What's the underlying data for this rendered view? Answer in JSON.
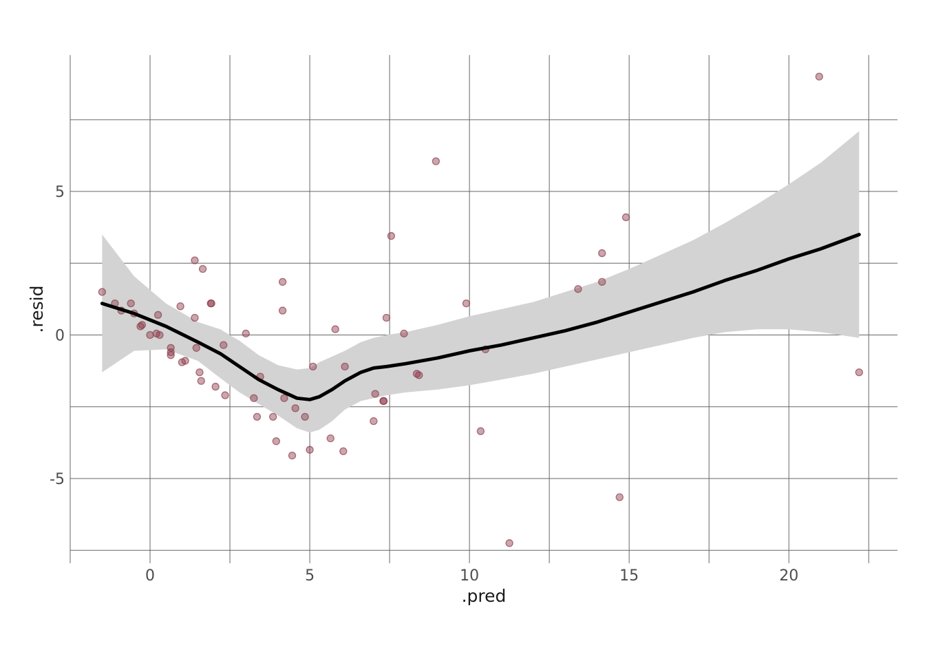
{
  "chart_data": {
    "type": "scatter",
    "title": "",
    "xlabel": ".pred",
    "ylabel": ".resid",
    "xlim": [
      -2.5,
      23.4
    ],
    "ylim": [
      -7.95,
      9.75
    ],
    "x_ticks": [
      0,
      5,
      10,
      15,
      20
    ],
    "x_tick_labels": [
      "0",
      "5",
      "10",
      "15",
      "20"
    ],
    "y_ticks": [
      -5,
      0,
      5
    ],
    "y_tick_labels": [
      "-5",
      "0",
      "5"
    ],
    "x_minor_grid": [
      -2.5,
      2.5,
      7.5,
      12.5,
      17.5,
      22.5
    ],
    "y_minor_grid": [
      -7.5,
      -2.5,
      2.5,
      7.5
    ],
    "grid": true,
    "legend": "none",
    "colors": {
      "points": "#8b3a4a",
      "smooth_line": "#000000",
      "ribbon": "#d3d3d3",
      "grid": "#666666"
    },
    "points": [
      [
        -1.5,
        1.5
      ],
      [
        -1.1,
        1.1
      ],
      [
        -0.9,
        0.85
      ],
      [
        -0.6,
        1.1
      ],
      [
        -0.5,
        0.75
      ],
      [
        -0.3,
        0.3
      ],
      [
        -0.25,
        0.35
      ],
      [
        0.0,
        0.0
      ],
      [
        0.2,
        0.05
      ],
      [
        0.25,
        0.7
      ],
      [
        0.3,
        0.0
      ],
      [
        0.65,
        -0.45
      ],
      [
        0.65,
        -0.6
      ],
      [
        0.65,
        -0.7
      ],
      [
        0.95,
        1.0
      ],
      [
        1.0,
        -0.95
      ],
      [
        1.1,
        -0.9
      ],
      [
        1.4,
        2.6
      ],
      [
        1.4,
        0.6
      ],
      [
        1.45,
        -0.45
      ],
      [
        1.55,
        -1.3
      ],
      [
        1.6,
        -1.6
      ],
      [
        1.65,
        2.3
      ],
      [
        1.9,
        1.1
      ],
      [
        1.92,
        1.1
      ],
      [
        2.05,
        -1.8
      ],
      [
        2.3,
        -0.35
      ],
      [
        2.35,
        -2.1
      ],
      [
        3.0,
        0.05
      ],
      [
        3.25,
        -2.2
      ],
      [
        3.35,
        -2.85
      ],
      [
        3.45,
        -1.45
      ],
      [
        3.85,
        -2.85
      ],
      [
        3.95,
        -3.7
      ],
      [
        4.15,
        1.85
      ],
      [
        4.15,
        0.85
      ],
      [
        4.2,
        -2.2
      ],
      [
        4.45,
        -4.2
      ],
      [
        4.55,
        -2.55
      ],
      [
        4.85,
        -2.85
      ],
      [
        5.0,
        -4.0
      ],
      [
        5.1,
        -1.1
      ],
      [
        5.65,
        -3.6
      ],
      [
        5.8,
        0.2
      ],
      [
        6.05,
        -4.05
      ],
      [
        6.1,
        -1.1
      ],
      [
        7.0,
        -3.0
      ],
      [
        7.05,
        -2.05
      ],
      [
        7.3,
        -2.3
      ],
      [
        7.32,
        -2.3
      ],
      [
        7.4,
        0.6
      ],
      [
        7.55,
        3.45
      ],
      [
        7.95,
        0.05
      ],
      [
        8.35,
        -1.35
      ],
      [
        8.42,
        -1.4
      ],
      [
        8.95,
        6.05
      ],
      [
        9.9,
        1.1
      ],
      [
        10.35,
        -3.35
      ],
      [
        10.5,
        -0.5
      ],
      [
        11.25,
        -7.25
      ],
      [
        13.4,
        1.6
      ],
      [
        14.15,
        2.85
      ],
      [
        14.15,
        1.85
      ],
      [
        14.7,
        -5.65
      ],
      [
        14.9,
        4.1
      ],
      [
        20.95,
        9.0
      ],
      [
        22.2,
        -1.3
      ]
    ],
    "smooth": {
      "x": [
        -1.5,
        -0.5,
        0.5,
        1.5,
        2.2,
        2.8,
        3.4,
        4.0,
        4.6,
        5.0,
        5.3,
        5.7,
        6.1,
        6.6,
        7.0,
        7.4,
        8.0,
        9.0,
        10.0,
        11.0,
        12.0,
        13.0,
        14.0,
        15.0,
        16.0,
        17.0,
        18.0,
        19.0,
        20.0,
        21.0,
        22.2
      ],
      "y": [
        1.1,
        0.75,
        0.3,
        -0.25,
        -0.65,
        -1.1,
        -1.55,
        -1.9,
        -2.2,
        -2.25,
        -2.15,
        -1.9,
        -1.6,
        -1.3,
        -1.15,
        -1.1,
        -1.0,
        -0.8,
        -0.55,
        -0.35,
        -0.1,
        0.15,
        0.45,
        0.8,
        1.15,
        1.5,
        1.9,
        2.25,
        2.65,
        3.0,
        3.5
      ],
      "lower": [
        -1.3,
        -0.55,
        -0.5,
        -0.9,
        -1.5,
        -2.0,
        -2.4,
        -2.8,
        -3.25,
        -3.4,
        -3.3,
        -3.0,
        -2.6,
        -2.3,
        -2.2,
        -2.1,
        -2.0,
        -1.9,
        -1.75,
        -1.55,
        -1.35,
        -1.1,
        -0.85,
        -0.6,
        -0.35,
        -0.1,
        0.1,
        0.2,
        0.2,
        0.1,
        -0.1
      ],
      "upper": [
        3.5,
        2.05,
        1.1,
        0.45,
        0.2,
        -0.2,
        -0.7,
        -1.05,
        -1.2,
        -1.15,
        -0.95,
        -0.75,
        -0.55,
        -0.25,
        -0.1,
        0.0,
        0.1,
        0.35,
        0.65,
        0.9,
        1.15,
        1.5,
        1.85,
        2.3,
        2.8,
        3.3,
        3.9,
        4.55,
        5.25,
        6.0,
        7.1
      ]
    }
  }
}
